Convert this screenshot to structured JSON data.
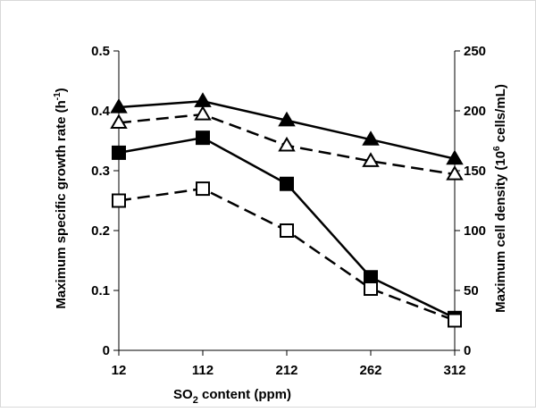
{
  "chart_data": {
    "type": "line",
    "xlabel_main": "SO",
    "xlabel_sub": "2",
    "xlabel_rest": " content (ppm)",
    "ylabel": "Maximum specific growth rate (h",
    "ylabel_sup": "-1",
    "ylabel_end": ")",
    "y2label": "Maximum cell density (10",
    "y2label_sup": "6",
    "y2label_end": " cells/mL)",
    "categories": [
      "12",
      "112",
      "212",
      "262",
      "312"
    ],
    "ylim": [
      0,
      0.5
    ],
    "y_ticks": [
      "0",
      "0.1",
      "0.2",
      "0.3",
      "0.4",
      "0.5"
    ],
    "y2lim": [
      0,
      250
    ],
    "y2_ticks": [
      "0",
      "50",
      "100",
      "150",
      "200",
      "250"
    ],
    "grid": false,
    "series": [
      {
        "axis": "left",
        "marker": "filled-square",
        "line": "solid",
        "values": [
          0.33,
          0.355,
          0.278,
          0.122,
          0.054
        ]
      },
      {
        "axis": "left",
        "marker": "open-square",
        "line": "dashed",
        "values": [
          0.25,
          0.27,
          0.2,
          0.103,
          0.05
        ]
      },
      {
        "axis": "right",
        "marker": "filled-triangle",
        "line": "solid",
        "values": [
          203,
          208,
          192,
          176,
          160
        ]
      },
      {
        "axis": "right",
        "marker": "open-triangle",
        "line": "dashed",
        "values": [
          190,
          197,
          171,
          158,
          147
        ]
      }
    ],
    "colors": {
      "line": "#000000",
      "open_fill": "#ffffff",
      "frame_border": "#d9d9d9"
    }
  }
}
